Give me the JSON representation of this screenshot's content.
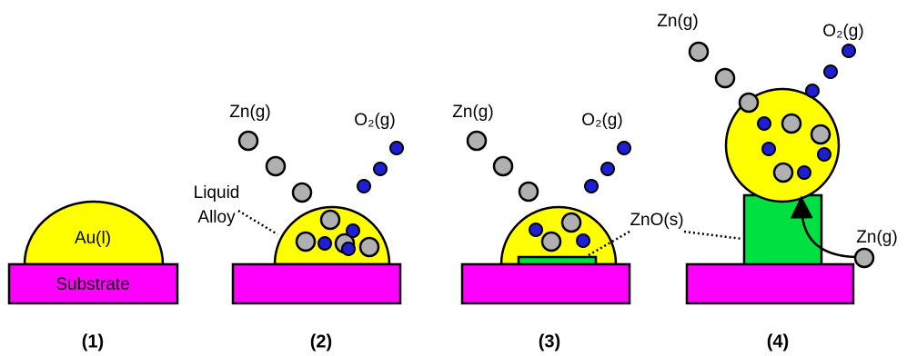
{
  "panels": [
    {
      "label": "(1)",
      "droplet": "Au(l)",
      "substrate": "Substrate"
    },
    {
      "label": "(2)",
      "zn": "Zn(g)",
      "o2": "O₂(g)",
      "alloy": [
        "Liquid",
        "Alloy"
      ]
    },
    {
      "label": "(3)",
      "zn": "Zn(g)",
      "o2": "O₂(g)",
      "zno": "ZnO(s)"
    },
    {
      "label": "(4)",
      "zn": "Zn(g)",
      "o2": "O₂(g)",
      "zn_surface": "Zn(g)"
    }
  ]
}
